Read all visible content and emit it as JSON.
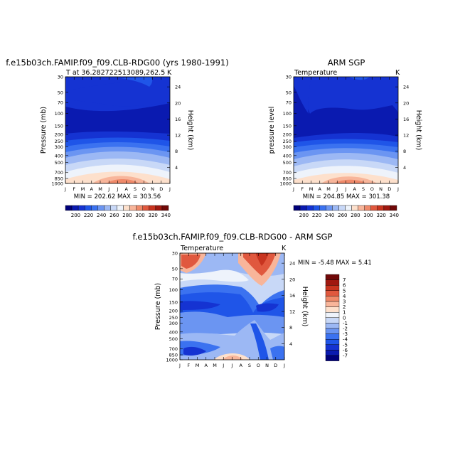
{
  "chart_data": [
    {
      "type": "heatmap",
      "title": "f.e15b03ch.FAMIP.f09_f09.CLB-RDG00 (yrs 1980-1991)",
      "subtitle_left": "T at 36.282722513089,262.5",
      "subtitle_right": "K",
      "ylabel": "Pressure (mb)",
      "ylabel_right": "Height (km)",
      "minmax_text": "MIN = 202.62  MAX = 303.56",
      "min": 202.62,
      "max": 303.56,
      "colorbar_labels": [
        "200",
        "220",
        "240",
        "260",
        "280",
        "300",
        "320",
        "340"
      ]
    },
    {
      "type": "heatmap",
      "title": "ARM SGP",
      "subtitle_left": "Temperature",
      "subtitle_right": "K",
      "ylabel": "pressure  level",
      "ylabel_right": "Height (km)",
      "minmax_text": "MIN = 204.85  MAX = 301.38",
      "min": 204.85,
      "max": 301.38,
      "colorbar_labels": [
        "200",
        "220",
        "240",
        "260",
        "280",
        "300",
        "320",
        "340"
      ]
    },
    {
      "type": "heatmap",
      "title": "f.e15b03ch.FAMIP.f09_f09.CLB-RDG00 - ARM SGP",
      "subtitle_left": "Temperature",
      "subtitle_right": "K",
      "ylabel": "Pressure (mb)",
      "ylabel_right": "Height (km)",
      "minmax_text": "MIN =   -5.48  MAX =    5.41",
      "min": -5.48,
      "max": 5.41,
      "legend_labels": [
        "7",
        "6",
        "5",
        "4",
        "3",
        "2",
        "1",
        "0",
        "-1",
        "-2",
        "-3",
        "-4",
        "-5",
        "-6",
        "-7"
      ]
    }
  ],
  "shared_axes": {
    "months": [
      "J",
      "F",
      "M",
      "A",
      "M",
      "J",
      "J",
      "A",
      "S",
      "O",
      "N",
      "D",
      "J"
    ],
    "pressure_ticks": [
      "30",
      "50",
      "70",
      "100",
      "150",
      "200",
      "250",
      "300",
      "400",
      "500",
      "700",
      "850",
      "1000"
    ],
    "height_ticks": [
      "24",
      "20",
      "16",
      "12",
      "8",
      "4"
    ]
  },
  "colors": {
    "temp_scale": [
      "#00007a",
      "#0a1ab0",
      "#1533d2",
      "#1f55e8",
      "#3b72f0",
      "#6b95f2",
      "#9cb8f4",
      "#c8d8f7",
      "#eef3fb",
      "#fde0cc",
      "#f8b59a",
      "#f08a6a",
      "#e0583e",
      "#c8341f",
      "#a01810",
      "#700808"
    ],
    "diff_scale": [
      "#00007a",
      "#0a1ab0",
      "#1533d2",
      "#1f55e8",
      "#3b72f0",
      "#6b95f2",
      "#9cb8f4",
      "#c8d8f7",
      "#eef3fb",
      "#fde0cc",
      "#f8b59a",
      "#f08a6a",
      "#e0583e",
      "#c8341f",
      "#a01810",
      "#700808"
    ]
  }
}
